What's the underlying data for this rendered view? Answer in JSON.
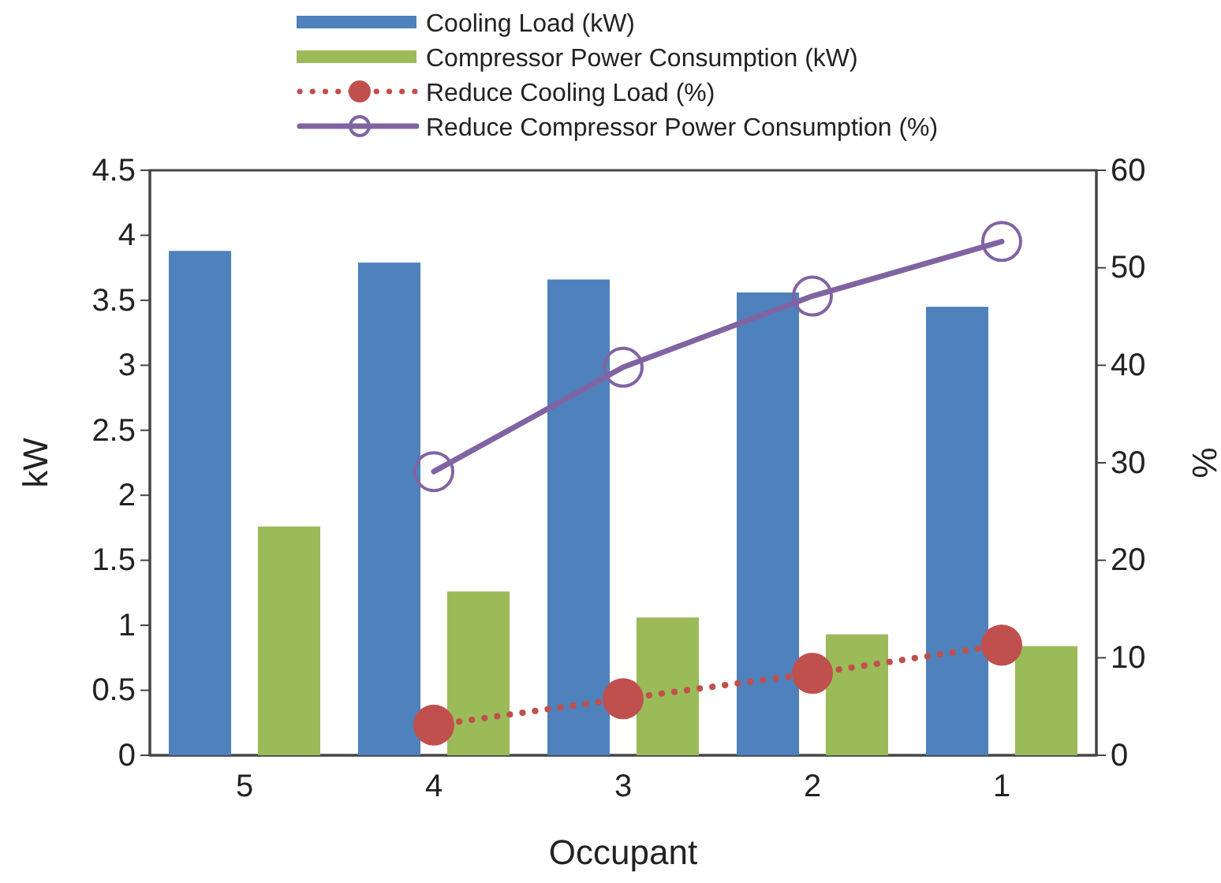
{
  "chart_data": {
    "type": "bar",
    "xlabel": "Occupant",
    "ylabel": "kW",
    "y2label": "%",
    "categories": [
      "5",
      "4",
      "3",
      "2",
      "1"
    ],
    "series": [
      {
        "name": "Cooling Load (kW)",
        "color": "#4f81bd",
        "values": [
          3.88,
          3.79,
          3.66,
          3.56,
          3.45
        ]
      },
      {
        "name": "Compressor Power Consumption (kW)",
        "color": "#9bbb59",
        "values": [
          1.76,
          1.26,
          1.06,
          0.93,
          0.84
        ]
      },
      {
        "name": "Reduce Cooling Load (%)",
        "type": "line",
        "axis": "y2",
        "color": "#c0504d",
        "marker": "circle",
        "line_style": "dotted",
        "values": [
          null,
          3.1,
          5.8,
          8.4,
          11.3
        ]
      },
      {
        "name": "Reduce Compressor Power Consumption (%)",
        "type": "line",
        "axis": "y2",
        "color": "#8064a2",
        "marker": "circle",
        "line_style": "solid",
        "values": [
          null,
          29.1,
          39.8,
          47.1,
          52.7
        ]
      }
    ],
    "ylim": [
      0,
      4.5
    ],
    "yticks": [
      0,
      0.5,
      1,
      1.5,
      2,
      2.5,
      3,
      3.5,
      4,
      4.5
    ],
    "y2lim": [
      0,
      60
    ],
    "y2ticks": [
      0,
      10,
      20,
      30,
      40,
      50,
      60
    ],
    "grid": false,
    "legend": "top"
  }
}
